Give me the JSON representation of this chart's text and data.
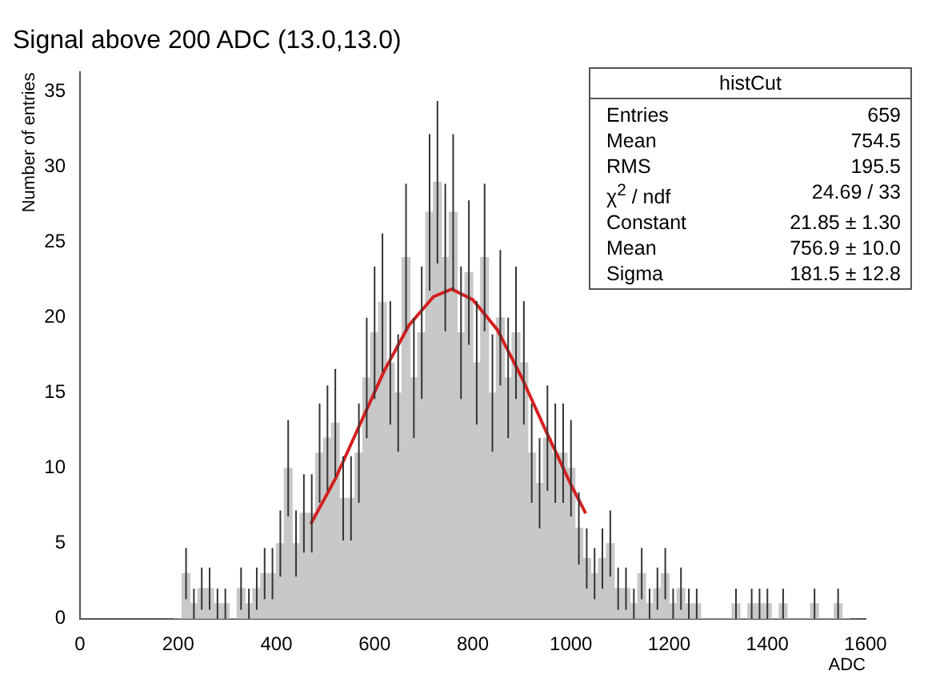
{
  "chart_data": {
    "type": "histogram",
    "title": "Signal above 200 ADC (13.0,13.0)",
    "xlabel": "ADC",
    "ylabel": "Number of entries",
    "bins": [
      192,
      208,
      224,
      240,
      256,
      272,
      288,
      304,
      320,
      336,
      352,
      368,
      384,
      400,
      416,
      432,
      448,
      464,
      480,
      496,
      512,
      528,
      544,
      560,
      576,
      592,
      608,
      624,
      640,
      656,
      672,
      688,
      704,
      720,
      736,
      752,
      768,
      784,
      800,
      816,
      832,
      848,
      864,
      880,
      896,
      912,
      928,
      944,
      960,
      976,
      992,
      1008,
      1024,
      1040,
      1056,
      1072,
      1088,
      1104,
      1120,
      1136,
      1152,
      1168,
      1184,
      1200,
      1216,
      1232,
      1248,
      1264,
      1280,
      1296,
      1312,
      1328,
      1344,
      1360,
      1376,
      1392,
      1408,
      1424,
      1440,
      1456,
      1472,
      1488,
      1504,
      1520,
      1536,
      1552,
      1568
    ],
    "values": [
      0,
      3,
      1,
      2,
      2,
      1,
      1,
      0,
      2,
      1,
      2,
      3,
      3,
      5,
      10,
      5,
      7,
      7,
      11,
      12,
      13,
      8,
      8,
      11,
      16,
      19,
      21,
      17,
      15,
      24,
      16,
      19,
      27,
      29,
      24,
      27,
      19,
      23,
      17,
      24,
      15,
      20,
      16,
      19,
      17,
      11,
      9,
      12,
      11,
      11,
      10,
      6,
      4,
      3,
      4,
      5,
      2,
      2,
      1,
      3,
      1,
      2,
      3,
      1,
      2,
      1,
      1,
      0,
      0,
      0,
      0,
      1,
      0,
      1,
      1,
      1,
      0,
      1,
      0,
      0,
      0,
      1,
      0,
      0,
      1,
      0
    ],
    "errors": [
      null,
      1.7,
      1,
      1.4,
      1.4,
      1,
      1,
      null,
      1.4,
      1,
      1.4,
      1.7,
      1.7,
      2.2,
      3.2,
      2.2,
      2.6,
      2.6,
      3.3,
      3.5,
      3.6,
      2.8,
      2.8,
      3.3,
      4,
      4.4,
      4.6,
      4.1,
      3.9,
      4.9,
      4,
      4.4,
      5.2,
      5.4,
      4.9,
      5.2,
      4.4,
      4.8,
      4.1,
      4.9,
      3.9,
      4.5,
      4,
      4.4,
      4.1,
      3.3,
      3,
      3.5,
      3.3,
      3.3,
      3.2,
      2.4,
      2,
      1.7,
      2,
      2.2,
      1.4,
      1.4,
      1,
      1.7,
      1,
      1.4,
      1.7,
      1,
      1.4,
      1,
      1,
      null,
      null,
      null,
      null,
      1,
      null,
      1,
      1,
      1,
      null,
      1,
      null,
      null,
      null,
      1,
      null,
      null,
      1,
      null
    ],
    "color": "#c8c8c8",
    "series": [
      {
        "type": "line",
        "color": "#d42020",
        "x": [
          470,
          520,
          570,
          620,
          670,
          720,
          757,
          800,
          850,
          900,
          950,
          1000,
          1030
        ],
        "values": [
          6.3,
          9.3,
          12.9,
          16.5,
          19.5,
          21.4,
          21.9,
          21.2,
          19.2,
          16.0,
          12.4,
          8.9,
          7.0
        ]
      }
    ],
    "xlim": [
      0,
      1600
    ],
    "xticks": [
      0,
      200,
      400,
      600,
      800,
      1000,
      1200,
      1400,
      1600
    ],
    "ylim": [
      0,
      36.3
    ],
    "yticks": [
      0,
      5,
      10,
      15,
      20,
      25,
      30,
      35
    ],
    "grid": false,
    "legend": false,
    "legend_title": "histCut",
    "annotations": [
      "Entries  659",
      "Mean  754.5",
      "RMS  195.5",
      "χ$^{2}$ / ndf  24.69 / 33",
      "Constant  21.85 ± 1.30",
      "Mean  756.9 ± 10.0",
      "Sigma  181.5 ± 12.8"
    ]
  }
}
